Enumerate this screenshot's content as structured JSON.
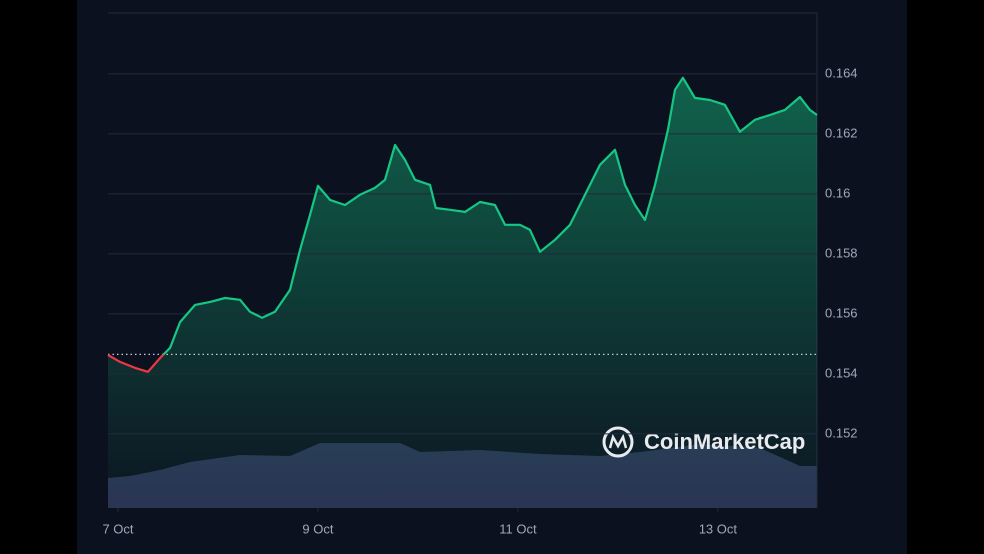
{
  "chart_data": {
    "type": "line",
    "watermark": "CoinMarketCap",
    "x": [
      -2.4,
      0.5,
      4.1,
      7.2,
      10.1,
      12.5,
      14.9,
      18.5,
      22.1,
      25.7,
      29.3,
      31.7,
      34.6,
      37.7,
      41.3,
      43.7,
      46.1,
      48.0,
      50.9,
      54.5,
      58.1,
      61.7,
      64.1,
      66.5,
      68.9,
      71.3,
      74.9,
      76.3,
      79.7,
      83.3,
      86.9,
      90.5,
      92.9,
      96.5,
      98.9,
      101.3,
      104.9,
      108.5,
      112.1,
      115.7,
      119.3,
      121.7,
      124.1,
      126.5,
      128.9,
      132.0,
      133.7,
      135.6,
      138.5,
      142.1,
      145.7,
      149.3,
      152.9,
      156.5,
      160.1,
      163.7,
      166.1,
      167.8
    ],
    "series": [
      {
        "color": "#16c784",
        "below_color": "#ea3943",
        "values": [
          0.15463,
          0.1544,
          0.1542,
          0.15407,
          0.15453,
          0.15487,
          0.15573,
          0.1563,
          0.1564,
          0.15653,
          0.15647,
          0.15607,
          0.15587,
          0.15607,
          0.1568,
          0.15813,
          0.1593,
          0.16027,
          0.1598,
          0.15963,
          0.15997,
          0.1602,
          0.16047,
          0.16163,
          0.16113,
          0.16047,
          0.1603,
          0.15953,
          0.15947,
          0.1594,
          0.15973,
          0.15963,
          0.15897,
          0.15897,
          0.1588,
          0.15807,
          0.15847,
          0.15897,
          0.15997,
          0.16097,
          0.16147,
          0.1603,
          0.15963,
          0.15913,
          0.1603,
          0.16213,
          0.16347,
          0.16387,
          0.1632,
          0.16313,
          0.16297,
          0.16207,
          0.16247,
          0.16263,
          0.1628,
          0.16323,
          0.1628,
          0.16263
        ]
      }
    ],
    "baseline": 0.15465,
    "xlim": [
      -2.4,
      167.8
    ],
    "xticks": [
      {
        "value": 0,
        "label": "7 Oct"
      },
      {
        "value": 48,
        "label": "9 Oct"
      },
      {
        "value": 96,
        "label": "11 Oct"
      },
      {
        "value": 144,
        "label": "13 Oct"
      }
    ],
    "ylim": [
      0.14953,
      0.16603
    ],
    "yticks": [
      0.152,
      0.154,
      0.156,
      0.158,
      0.16,
      0.162,
      0.164
    ],
    "grid": true
  }
}
